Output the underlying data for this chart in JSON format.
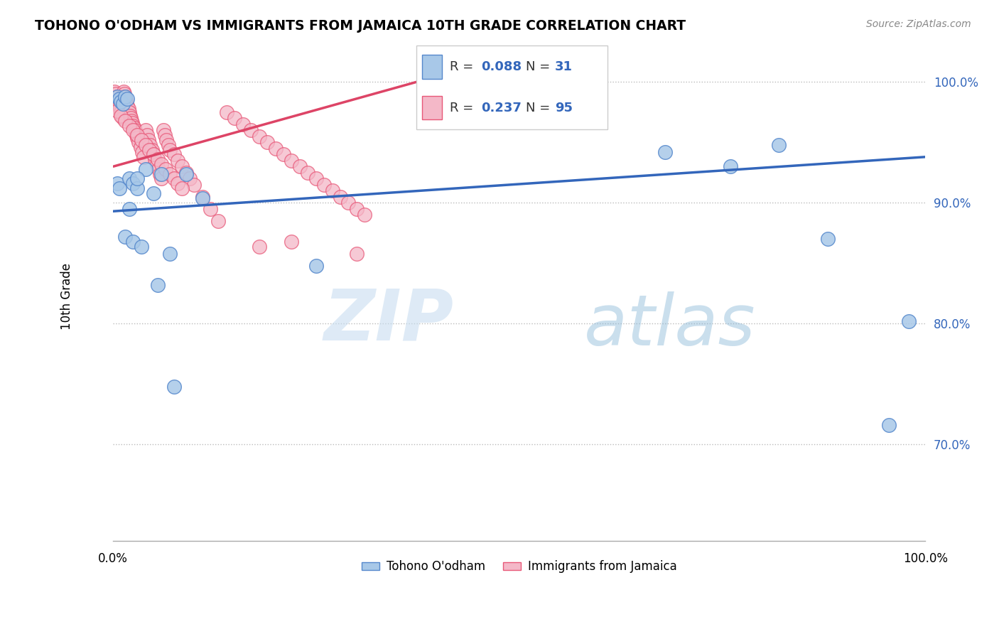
{
  "title": "TOHONO O'ODHAM VS IMMIGRANTS FROM JAMAICA 10TH GRADE CORRELATION CHART",
  "source": "Source: ZipAtlas.com",
  "ylabel": "10th Grade",
  "watermark_zip": "ZIP",
  "watermark_atlas": "atlas",
  "legend_blue_r": "0.088",
  "legend_blue_n": "31",
  "legend_pink_r": "0.237",
  "legend_pink_n": "95",
  "blue_color": "#a8c8e8",
  "pink_color": "#f4b8c8",
  "blue_edge_color": "#5588cc",
  "pink_edge_color": "#e85878",
  "blue_line_color": "#3366bb",
  "pink_line_color": "#dd4466",
  "r_value_color": "#3366bb",
  "xlim": [
    0.0,
    1.0
  ],
  "ylim": [
    0.62,
    1.025
  ],
  "yticks": [
    0.7,
    0.8,
    0.9,
    1.0
  ],
  "ytick_labels": [
    "70.0%",
    "80.0%",
    "90.0%",
    "100.0%"
  ],
  "blue_line_x0": 0.0,
  "blue_line_y0": 0.893,
  "blue_line_x1": 1.0,
  "blue_line_y1": 0.938,
  "pink_line_x0": 0.0,
  "pink_line_y0": 0.93,
  "pink_line_x1": 0.4,
  "pink_line_y1": 1.005,
  "blue_scatter_x": [
    0.005,
    0.008,
    0.01,
    0.012,
    0.015,
    0.018,
    0.005,
    0.008,
    0.02,
    0.025,
    0.03,
    0.05,
    0.07,
    0.09,
    0.11,
    0.25,
    0.02,
    0.04,
    0.06,
    0.03,
    0.68,
    0.76,
    0.82,
    0.88,
    0.98,
    0.015,
    0.025,
    0.035,
    0.055,
    0.075,
    0.955
  ],
  "blue_scatter_y": [
    0.988,
    0.986,
    0.984,
    0.982,
    0.988,
    0.986,
    0.916,
    0.912,
    0.92,
    0.916,
    0.912,
    0.908,
    0.858,
    0.924,
    0.904,
    0.848,
    0.895,
    0.928,
    0.924,
    0.92,
    0.942,
    0.93,
    0.948,
    0.87,
    0.802,
    0.872,
    0.868,
    0.864,
    0.832,
    0.748,
    0.716
  ],
  "pink_scatter_x": [
    0.002,
    0.004,
    0.005,
    0.006,
    0.007,
    0.008,
    0.009,
    0.01,
    0.011,
    0.012,
    0.013,
    0.014,
    0.015,
    0.016,
    0.017,
    0.018,
    0.019,
    0.02,
    0.021,
    0.022,
    0.023,
    0.024,
    0.025,
    0.026,
    0.027,
    0.028,
    0.029,
    0.03,
    0.032,
    0.034,
    0.036,
    0.038,
    0.04,
    0.042,
    0.044,
    0.046,
    0.048,
    0.05,
    0.052,
    0.054,
    0.056,
    0.058,
    0.06,
    0.062,
    0.064,
    0.066,
    0.068,
    0.07,
    0.075,
    0.08,
    0.085,
    0.09,
    0.095,
    0.1,
    0.11,
    0.12,
    0.13,
    0.14,
    0.15,
    0.16,
    0.17,
    0.18,
    0.19,
    0.2,
    0.21,
    0.22,
    0.23,
    0.24,
    0.25,
    0.26,
    0.27,
    0.28,
    0.29,
    0.3,
    0.31,
    0.005,
    0.01,
    0.015,
    0.02,
    0.025,
    0.03,
    0.035,
    0.04,
    0.045,
    0.05,
    0.055,
    0.06,
    0.065,
    0.07,
    0.075,
    0.08,
    0.085,
    0.22,
    0.18,
    0.3
  ],
  "pink_scatter_y": [
    0.992,
    0.99,
    0.988,
    0.985,
    0.982,
    0.98,
    0.978,
    0.975,
    0.972,
    0.97,
    0.992,
    0.99,
    0.988,
    0.985,
    0.982,
    0.98,
    0.978,
    0.975,
    0.972,
    0.97,
    0.968,
    0.966,
    0.964,
    0.962,
    0.96,
    0.958,
    0.956,
    0.954,
    0.95,
    0.946,
    0.942,
    0.938,
    0.96,
    0.956,
    0.952,
    0.948,
    0.944,
    0.94,
    0.936,
    0.932,
    0.928,
    0.924,
    0.92,
    0.96,
    0.956,
    0.952,
    0.948,
    0.944,
    0.94,
    0.935,
    0.93,
    0.925,
    0.92,
    0.915,
    0.905,
    0.895,
    0.885,
    0.975,
    0.97,
    0.965,
    0.96,
    0.955,
    0.95,
    0.945,
    0.94,
    0.935,
    0.93,
    0.925,
    0.92,
    0.915,
    0.91,
    0.905,
    0.9,
    0.895,
    0.89,
    0.976,
    0.972,
    0.968,
    0.964,
    0.96,
    0.956,
    0.952,
    0.948,
    0.944,
    0.94,
    0.936,
    0.932,
    0.928,
    0.924,
    0.92,
    0.916,
    0.912,
    0.868,
    0.864,
    0.858
  ]
}
